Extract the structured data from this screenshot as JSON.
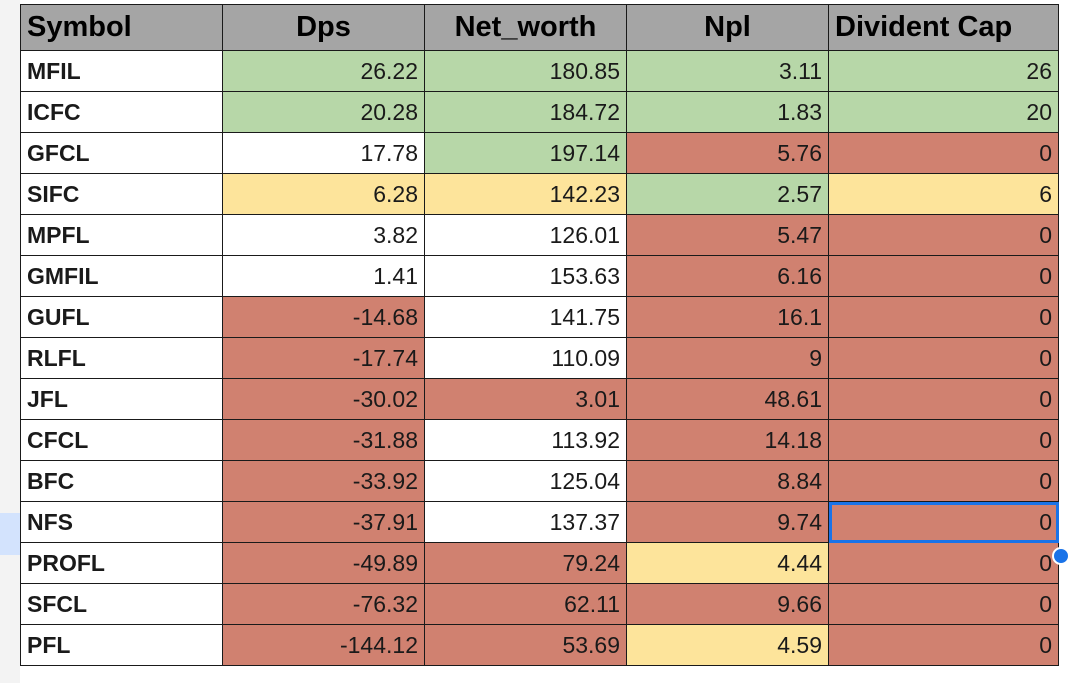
{
  "sheet": {
    "headers": {
      "symbol": "Symbol",
      "dps": "Dps",
      "net_worth": "Net_worth",
      "npl": "Npl",
      "divident_cap": "Divident Cap"
    },
    "colors": {
      "green": "#b7d7a8",
      "yellow": "#fde49b",
      "red": "#d08170",
      "white": "#ffffff",
      "header": "#a5a5a5",
      "selection": "#1a73e8"
    },
    "selected_cell": {
      "row": "NFS",
      "column": "Divident Cap"
    },
    "rows": [
      {
        "symbol": "MFIL",
        "dps": "26.22",
        "net_worth": "180.85",
        "npl": "3.11",
        "cap": "26",
        "c": [
          "g",
          "g",
          "g",
          "g"
        ]
      },
      {
        "symbol": "ICFC",
        "dps": "20.28",
        "net_worth": "184.72",
        "npl": "1.83",
        "cap": "20",
        "c": [
          "g",
          "g",
          "g",
          "g"
        ]
      },
      {
        "symbol": "GFCL",
        "dps": "17.78",
        "net_worth": "197.14",
        "npl": "5.76",
        "cap": "0",
        "c": [
          "w",
          "g",
          "r",
          "r"
        ]
      },
      {
        "symbol": "SIFC",
        "dps": "6.28",
        "net_worth": "142.23",
        "npl": "2.57",
        "cap": "6",
        "c": [
          "y",
          "y",
          "g",
          "y"
        ]
      },
      {
        "symbol": "MPFL",
        "dps": "3.82",
        "net_worth": "126.01",
        "npl": "5.47",
        "cap": "0",
        "c": [
          "w",
          "w",
          "r",
          "r"
        ]
      },
      {
        "symbol": "GMFIL",
        "dps": "1.41",
        "net_worth": "153.63",
        "npl": "6.16",
        "cap": "0",
        "c": [
          "w",
          "w",
          "r",
          "r"
        ]
      },
      {
        "symbol": "GUFL",
        "dps": "-14.68",
        "net_worth": "141.75",
        "npl": "16.1",
        "cap": "0",
        "c": [
          "r",
          "w",
          "r",
          "r"
        ]
      },
      {
        "symbol": "RLFL",
        "dps": "-17.74",
        "net_worth": "110.09",
        "npl": "9",
        "cap": "0",
        "c": [
          "r",
          "w",
          "r",
          "r"
        ]
      },
      {
        "symbol": "JFL",
        "dps": "-30.02",
        "net_worth": "3.01",
        "npl": "48.61",
        "cap": "0",
        "c": [
          "r",
          "r",
          "r",
          "r"
        ]
      },
      {
        "symbol": "CFCL",
        "dps": "-31.88",
        "net_worth": "113.92",
        "npl": "14.18",
        "cap": "0",
        "c": [
          "r",
          "w",
          "r",
          "r"
        ]
      },
      {
        "symbol": "BFC",
        "dps": "-33.92",
        "net_worth": "125.04",
        "npl": "8.84",
        "cap": "0",
        "c": [
          "r",
          "w",
          "r",
          "r"
        ]
      },
      {
        "symbol": "NFS",
        "dps": "-37.91",
        "net_worth": "137.37",
        "npl": "9.74",
        "cap": "0",
        "c": [
          "r",
          "w",
          "r",
          "r"
        ]
      },
      {
        "symbol": "PROFL",
        "dps": "-49.89",
        "net_worth": "79.24",
        "npl": "4.44",
        "cap": "0",
        "c": [
          "r",
          "r",
          "y",
          "r"
        ]
      },
      {
        "symbol": "SFCL",
        "dps": "-76.32",
        "net_worth": "62.11",
        "npl": "9.66",
        "cap": "0",
        "c": [
          "r",
          "r",
          "r",
          "r"
        ]
      },
      {
        "symbol": "PFL",
        "dps": "-144.12",
        "net_worth": "53.69",
        "npl": "4.59",
        "cap": "0",
        "c": [
          "r",
          "r",
          "y",
          "r"
        ]
      }
    ]
  }
}
